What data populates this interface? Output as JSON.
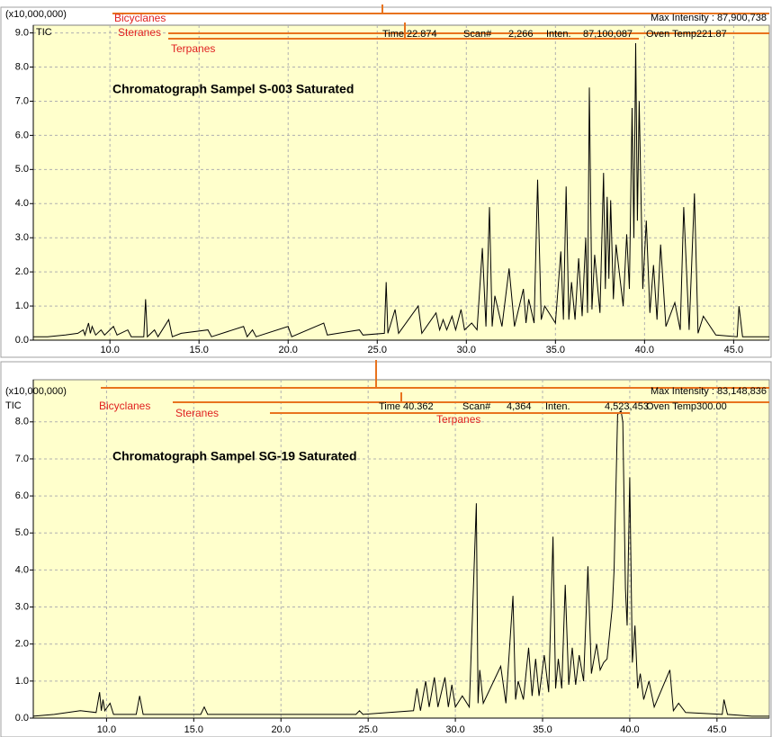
{
  "chart_data": [
    {
      "type": "line",
      "title": "Chromatograph Sampel S-003 Saturated",
      "y_unit": "(x10,000,000)",
      "trace_label": "TIC",
      "max_intensity": "Max Intensity : 87,900,738",
      "info": [
        "Time",
        "22.874",
        "Scan#",
        "2,266",
        "Inten.",
        "87,100,087",
        "Oven Temp221.87"
      ],
      "markers": [
        "Bicyclanes",
        "Steranes",
        "Terpanes"
      ],
      "color": "#000000",
      "marker_color": "#e8731e",
      "marker_text_color": "#e02020",
      "background": "#ffffcc",
      "grid": true,
      "xlim": [
        5.7,
        47.0
      ],
      "ylim": [
        0,
        9.2
      ],
      "xticks": [
        {
          "value": 10,
          "label": "10.0"
        },
        {
          "value": 15,
          "label": "15.0"
        },
        {
          "value": 20,
          "label": "20.0"
        },
        {
          "value": 25,
          "label": "25.0"
        },
        {
          "value": 30,
          "label": "30.0"
        },
        {
          "value": 35,
          "label": "35.0"
        },
        {
          "value": 40,
          "label": "40.0"
        },
        {
          "value": 45,
          "label": "45.0"
        }
      ],
      "yticks": [
        {
          "value": 0,
          "label": "0.0"
        },
        {
          "value": 1,
          "label": "1.0"
        },
        {
          "value": 2,
          "label": "2.0"
        },
        {
          "value": 3,
          "label": "3.0"
        },
        {
          "value": 4,
          "label": "4.0"
        },
        {
          "value": 5,
          "label": "5.0"
        },
        {
          "value": 6,
          "label": "6.0"
        },
        {
          "value": 7,
          "label": "7.0"
        },
        {
          "value": 8,
          "label": "8.0"
        },
        {
          "value": 9,
          "label": "9.0"
        }
      ],
      "x": [
        5.7,
        6.5,
        7.5,
        8.2,
        8.5,
        8.6,
        8.8,
        8.9,
        9.0,
        9.2,
        9.5,
        9.7,
        10.2,
        10.4,
        11.0,
        11.2,
        11.9,
        12.0,
        12.1,
        12.5,
        12.7,
        13.3,
        13.5,
        14.0,
        15.5,
        15.7,
        17.5,
        17.7,
        18.0,
        18.2,
        20.0,
        20.2,
        22.0,
        22.2,
        24.0,
        24.2,
        25.4,
        25.5,
        25.6,
        26.0,
        26.2,
        27.3,
        27.5,
        28.3,
        28.5,
        28.7,
        28.9,
        29.2,
        29.4,
        29.7,
        29.9,
        30.3,
        30.6,
        30.9,
        31.1,
        31.3,
        31.45,
        31.6,
        32.0,
        32.4,
        32.7,
        33.2,
        33.35,
        33.5,
        33.8,
        34.0,
        34.2,
        34.4,
        35.0,
        35.3,
        35.45,
        35.6,
        35.75,
        35.9,
        36.1,
        36.3,
        36.5,
        36.7,
        36.8,
        36.9,
        37.05,
        37.2,
        37.5,
        37.7,
        37.8,
        37.9,
        38.0,
        38.1,
        38.25,
        38.4,
        38.8,
        39.0,
        39.15,
        39.3,
        39.4,
        39.5,
        39.6,
        39.7,
        39.9,
        40.1,
        40.3,
        40.5,
        40.7,
        40.9,
        41.2,
        41.7,
        42.0,
        42.2,
        42.5,
        42.8,
        43.0,
        43.3,
        44.0,
        45.2,
        45.3,
        45.5,
        46.5,
        47.0
      ],
      "values": [
        0.1,
        0.1,
        0.15,
        0.2,
        0.3,
        0.15,
        0.5,
        0.2,
        0.4,
        0.15,
        0.3,
        0.15,
        0.4,
        0.15,
        0.3,
        0.1,
        0.1,
        1.2,
        0.1,
        0.3,
        0.1,
        0.6,
        0.1,
        0.2,
        0.3,
        0.1,
        0.4,
        0.1,
        0.3,
        0.1,
        0.4,
        0.1,
        0.5,
        0.15,
        0.3,
        0.15,
        0.2,
        1.7,
        0.2,
        0.9,
        0.2,
        1.0,
        0.2,
        0.8,
        0.3,
        0.6,
        0.3,
        0.7,
        0.3,
        0.9,
        0.3,
        0.5,
        0.3,
        2.7,
        0.4,
        3.9,
        0.4,
        1.3,
        0.4,
        2.1,
        0.4,
        1.5,
        0.5,
        1.2,
        0.5,
        4.7,
        0.6,
        1.0,
        0.5,
        2.6,
        0.6,
        4.5,
        0.6,
        1.7,
        0.6,
        2.4,
        0.7,
        3.0,
        0.8,
        7.4,
        0.9,
        2.5,
        0.8,
        4.9,
        1.5,
        4.2,
        1.8,
        4.1,
        1.2,
        2.8,
        1.0,
        3.1,
        1.5,
        6.8,
        3.0,
        8.7,
        3.5,
        7.0,
        1.5,
        3.5,
        0.8,
        2.2,
        0.6,
        2.8,
        0.4,
        1.1,
        0.3,
        3.9,
        0.3,
        4.3,
        0.2,
        0.7,
        0.15,
        0.1,
        1.0,
        0.1,
        0.1,
        0.1
      ]
    },
    {
      "type": "line",
      "title": "Chromatograph Sampel SG-19 Saturated",
      "y_unit": "(x10,000,000)",
      "trace_label": "TIC",
      "max_intensity": "Max Intensity : 83,148,836",
      "info": [
        "Time",
        "40.362",
        "Scan#",
        "4,364",
        "Inten.",
        "4,523,453",
        "Oven Temp300.00"
      ],
      "markers": [
        "Bicyclanes",
        "Steranes",
        "Terpanes"
      ],
      "color": "#000000",
      "marker_color": "#e8731e",
      "marker_text_color": "#e02020",
      "background": "#ffffcc",
      "grid": true,
      "xlim": [
        5.8,
        48.0
      ],
      "ylim": [
        0,
        8.7
      ],
      "xticks": [
        {
          "value": 10,
          "label": "10.0"
        },
        {
          "value": 15,
          "label": "15.0"
        },
        {
          "value": 20,
          "label": "20.0"
        },
        {
          "value": 25,
          "label": "25.0"
        },
        {
          "value": 30,
          "label": "30.0"
        },
        {
          "value": 35,
          "label": "35.0"
        },
        {
          "value": 40,
          "label": "40.0"
        },
        {
          "value": 45,
          "label": "45.0"
        }
      ],
      "yticks": [
        {
          "value": 0,
          "label": "0.0"
        },
        {
          "value": 1,
          "label": "1.0"
        },
        {
          "value": 2,
          "label": "2.0"
        },
        {
          "value": 3,
          "label": "3.0"
        },
        {
          "value": 4,
          "label": "4.0"
        },
        {
          "value": 5,
          "label": "5.0"
        },
        {
          "value": 6,
          "label": "6.0"
        },
        {
          "value": 7,
          "label": "7.0"
        },
        {
          "value": 8,
          "label": "8.0"
        }
      ],
      "x": [
        5.8,
        7.0,
        8.5,
        9.4,
        9.6,
        9.7,
        9.8,
        9.9,
        10.2,
        10.4,
        11.7,
        11.9,
        12.1,
        15.4,
        15.6,
        15.8,
        24.3,
        24.5,
        24.7,
        27.6,
        27.8,
        28.0,
        28.3,
        28.5,
        28.8,
        29.0,
        29.4,
        29.6,
        29.8,
        30.0,
        30.4,
        30.8,
        31.2,
        31.3,
        31.4,
        31.6,
        32.6,
        32.9,
        33.3,
        33.45,
        33.6,
        33.9,
        34.2,
        34.4,
        34.6,
        34.8,
        35.1,
        35.35,
        35.6,
        35.75,
        35.9,
        36.1,
        36.3,
        36.5,
        36.7,
        36.9,
        37.1,
        37.35,
        37.6,
        37.8,
        38.1,
        38.3,
        38.5,
        38.7,
        39.0,
        39.1,
        39.3,
        39.5,
        39.6,
        39.75,
        39.85,
        40.0,
        40.15,
        40.3,
        40.45,
        40.6,
        40.8,
        41.1,
        41.4,
        42.3,
        42.5,
        42.8,
        43.2,
        45.3,
        45.4,
        45.6,
        47.0,
        48.0
      ],
      "values": [
        0.05,
        0.1,
        0.2,
        0.15,
        0.7,
        0.2,
        0.5,
        0.2,
        0.4,
        0.1,
        0.1,
        0.6,
        0.1,
        0.1,
        0.3,
        0.1,
        0.1,
        0.2,
        0.1,
        0.2,
        0.8,
        0.2,
        1.0,
        0.3,
        1.1,
        0.3,
        1.1,
        0.3,
        0.9,
        0.3,
        0.6,
        0.3,
        5.8,
        0.4,
        1.3,
        0.4,
        1.4,
        0.4,
        3.3,
        0.5,
        1.0,
        0.5,
        1.9,
        0.6,
        1.6,
        0.6,
        1.7,
        0.7,
        4.9,
        0.8,
        1.6,
        0.8,
        3.6,
        0.9,
        1.9,
        0.9,
        1.7,
        1.0,
        4.1,
        1.2,
        2.0,
        1.3,
        1.5,
        1.6,
        3.0,
        4.0,
        8.2,
        8.3,
        8.0,
        3.5,
        2.5,
        6.5,
        1.5,
        2.5,
        0.8,
        1.2,
        0.5,
        1.0,
        0.3,
        1.3,
        0.2,
        0.4,
        0.15,
        0.1,
        0.5,
        0.1,
        0.05,
        0.05
      ]
    }
  ]
}
